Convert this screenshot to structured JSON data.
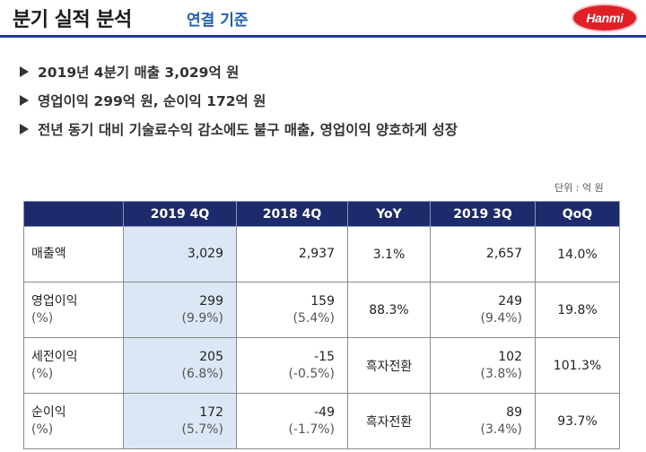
{
  "header": {
    "title": "분기 실적 분석",
    "subtitle": "연결 기준",
    "logo": "Hanmi"
  },
  "bullets": [
    "2019년 4분기 매출 3,029억 원",
    "영업이익 299억 원, 순이익 172억 원",
    "전년 동기 대비 기술료수익 감소에도 불구 매출, 영업이익 양호하게 성장"
  ],
  "unit_note": "단위 : 억 원",
  "table": {
    "headers": [
      "",
      "2019 4Q",
      "2018 4Q",
      "YoY",
      "2019 3Q",
      "QoQ"
    ],
    "rows": [
      {
        "label": "매출액",
        "label_sub": "",
        "q4_2019": "3,029",
        "q4_2019_sub": "",
        "q4_2018": "2,937",
        "q4_2018_sub": "",
        "yoy": "3.1%",
        "q3_2019": "2,657",
        "q3_2019_sub": "",
        "qoq": "14.0%"
      },
      {
        "label": "영업이익",
        "label_sub": "(%)",
        "q4_2019": "299",
        "q4_2019_sub": "(9.9%)",
        "q4_2018": "159",
        "q4_2018_sub": "(5.4%)",
        "yoy": "88.3%",
        "q3_2019": "249",
        "q3_2019_sub": "(9.4%)",
        "qoq": "19.8%"
      },
      {
        "label": "세전이익",
        "label_sub": "(%)",
        "q4_2019": "205",
        "q4_2019_sub": "(6.8%)",
        "q4_2018": "-15",
        "q4_2018_sub": "(-0.5%)",
        "yoy": "흑자전환",
        "q3_2019": "102",
        "q3_2019_sub": "(3.8%)",
        "qoq": "101.3%"
      },
      {
        "label": "순이익",
        "label_sub": "(%)",
        "q4_2019": "172",
        "q4_2019_sub": "(5.7%)",
        "q4_2018": "-49",
        "q4_2018_sub": "(-1.7%)",
        "yoy": "흑자전환",
        "q3_2019": "89",
        "q3_2019_sub": "(3.4%)",
        "qoq": "93.7%"
      }
    ]
  },
  "colors": {
    "header_bg": "#1d2a6b",
    "highlight_col": "#dbe7f4",
    "accent_blue": "#1f5fb4",
    "logo_red": "#e11f26"
  }
}
